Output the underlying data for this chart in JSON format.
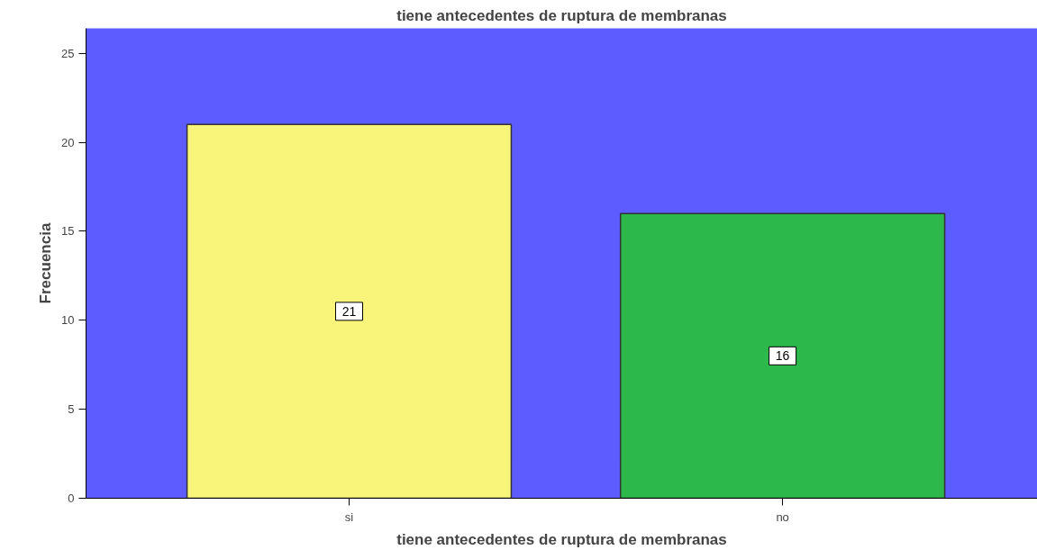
{
  "chart_data": {
    "type": "bar",
    "title": "tiene antecedentes de ruptura de membranas",
    "xlabel": "tiene antecedentes de ruptura de membranas",
    "ylabel": "Frecuencia",
    "categories": [
      "si",
      "no"
    ],
    "values": [
      21,
      16
    ],
    "colors": [
      "#f9f57a",
      "#2db84b"
    ],
    "ylim": [
      0,
      26.4
    ],
    "yticks": [
      0,
      5,
      10,
      15,
      20,
      25
    ],
    "grid": false,
    "data_labels": true
  }
}
